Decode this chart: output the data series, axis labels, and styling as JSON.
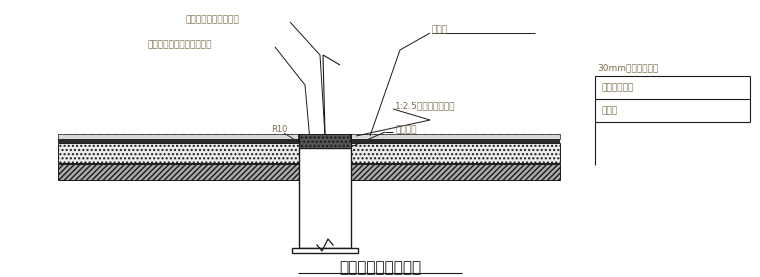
{
  "title": "桩顶防水做法示意图",
  "title_fontsize": 11,
  "bg_color": "#ffffff",
  "line_color": "#1a1a1a",
  "label_color": "#7b6e4e",
  "label_left1": "聚合物水泥砂浆保护层",
  "label_left2": "水泥基渗透结晶型防水涂料",
  "label_r10": "R10",
  "label_pile_rebar": "桩钢筋",
  "label_mortar": "1:2.5水泥砂浆保护层",
  "label_pile_top": "桩顶标高",
  "label_right1": "30mm细石砼保护层",
  "label_right2": "丁基橡胶垫材",
  "label_right3": "地基层",
  "fig_width": 7.6,
  "fig_height": 2.77,
  "dpi": 100
}
